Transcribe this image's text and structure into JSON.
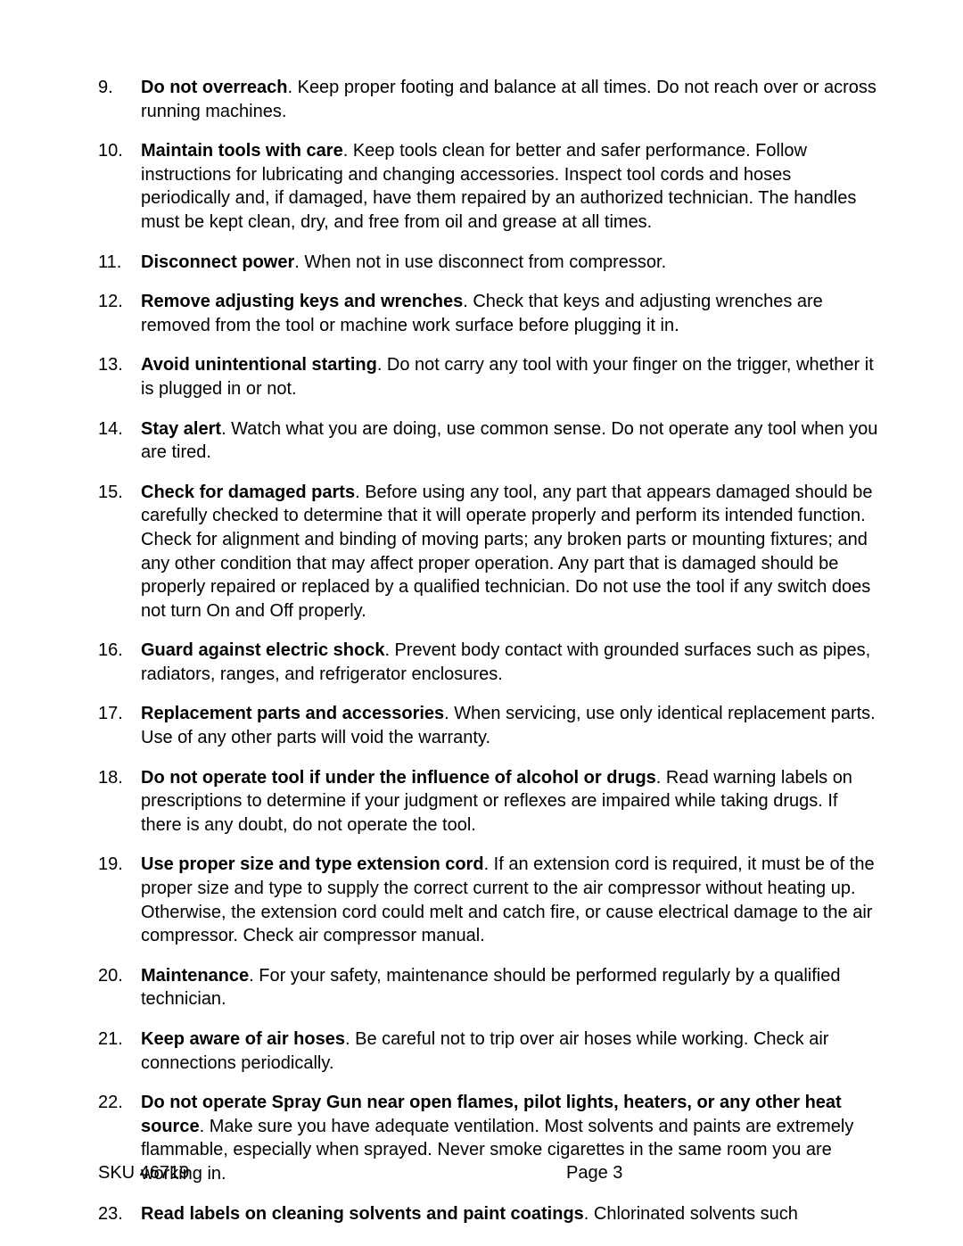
{
  "footer": {
    "sku": "SKU 46719",
    "page": "Page 3"
  },
  "items": [
    {
      "num": "9.",
      "bold": "Do not overreach",
      "text": ".  Keep proper footing and balance at all times. Do not reach over or across running machines."
    },
    {
      "num": "10.",
      "bold": "Maintain tools with care",
      "text": ".  Keep tools clean for better and safer performance. Follow instructions for lubricating and changing accessories. Inspect tool cords and hoses periodically and, if damaged, have them repaired by an authorized technician. The handles must be kept clean, dry, and free from oil and grease at all times."
    },
    {
      "num": "11.",
      "bold": "Disconnect power",
      "text": ". When not in use disconnect from compressor."
    },
    {
      "num": "12.",
      "bold": "Remove adjusting keys and wrenches",
      "text": ".  Check that keys and adjusting wrenches are removed from the tool or machine work surface before plugging it in."
    },
    {
      "num": "13.",
      "bold": "Avoid unintentional starting",
      "text": ".  Do not carry any tool with your finger on the trigger, whether it is plugged in or not."
    },
    {
      "num": "14.",
      "bold": "Stay alert",
      "text": ".  Watch what you are doing, use common sense. Do not operate any tool when you are tired."
    },
    {
      "num": "15.",
      "bold": "Check for damaged parts",
      "text": ".  Before using any tool, any part that appears damaged should be carefully checked to determine that it will operate properly and perform its intended function. Check for alignment and binding of moving parts; any broken parts or mounting fixtures; and any other condition that may affect proper operation. Any part that is damaged should be properly repaired or replaced by a qualified technician. Do not use the tool if any switch does not turn On and Off properly."
    },
    {
      "num": "16.",
      "bold": "Guard against electric shock",
      "text": ".  Prevent body contact with grounded surfaces such as pipes, radiators, ranges, and refrigerator enclosures."
    },
    {
      "num": "17.",
      "bold": "Replacement parts and accessories",
      "text": ".  When servicing, use only identical replacement parts. Use of any other parts will void the warranty."
    },
    {
      "num": "18.",
      "bold": "Do not operate tool if under the influence of alcohol or drugs",
      "text": ".  Read warning labels on prescriptions to determine if your judgment or reflexes are impaired while taking drugs. If there is any doubt, do not operate the tool."
    },
    {
      "num": "19.",
      "bold": "Use proper size and type extension cord",
      "text": ". If an extension cord is required, it must be of the proper size and type to supply the correct current to the air compressor without heating up. Otherwise, the extension cord could melt and catch fire, or cause electrical damage to the air compressor.  Check air compressor manual."
    },
    {
      "num": "20.",
      "bold": "Maintenance",
      "text": ".  For your safety, maintenance should be performed regularly by a qualified technician."
    },
    {
      "num": "21.",
      "bold": "Keep aware of air hoses",
      "text": ".  Be careful not to trip over air hoses while working.  Check air connections periodically."
    },
    {
      "num": "22.",
      "bold": "Do not operate Spray Gun near open flames, pilot lights, heaters, or any other heat source",
      "text": ".  Make sure you have adequate ventilation.  Most solvents and paints are extremely flammable, especially when sprayed.  Never smoke cigarettes in the same room you are working in."
    },
    {
      "num": "23.",
      "bold": "Read labels on cleaning solvents and paint coatings",
      "text": ".  Chlorinated solvents such"
    }
  ]
}
